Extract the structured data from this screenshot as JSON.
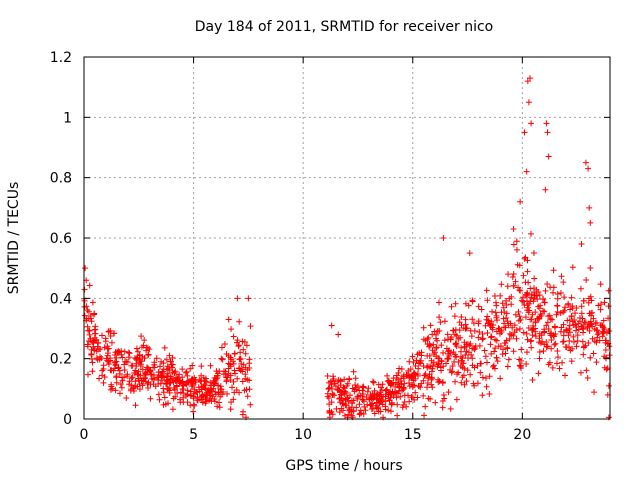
{
  "chart_data": {
    "type": "scatter",
    "title": "Day 184 of 2011, SRMTID for receiver nico",
    "xlabel": "GPS time / hours",
    "ylabel": "SRMTID / TECUs",
    "xlim": [
      0,
      24
    ],
    "ylim": [
      0,
      1.2
    ],
    "x_ticks": [
      0,
      5,
      10,
      15,
      20
    ],
    "x_tick_labels": [
      "0",
      "5",
      "10",
      "15",
      "20"
    ],
    "y_ticks": [
      0,
      0.2,
      0.4,
      0.6,
      0.8,
      1.0,
      1.2
    ],
    "y_tick_labels": [
      "0",
      "0.2",
      "0.4",
      "0.6",
      "0.8",
      "1",
      "1.2"
    ],
    "grid": true,
    "marker": "+",
    "series_color": "#ff0000",
    "data_gap_hours": [
      7.6,
      11.1
    ],
    "trend": [
      {
        "x": 0.0,
        "y": 0.34,
        "spread": 0.12
      },
      {
        "x": 0.5,
        "y": 0.25,
        "spread": 0.08
      },
      {
        "x": 1.0,
        "y": 0.2,
        "spread": 0.07
      },
      {
        "x": 2.0,
        "y": 0.17,
        "spread": 0.06
      },
      {
        "x": 3.0,
        "y": 0.16,
        "spread": 0.06
      },
      {
        "x": 4.0,
        "y": 0.13,
        "spread": 0.05
      },
      {
        "x": 5.0,
        "y": 0.1,
        "spread": 0.04
      },
      {
        "x": 6.0,
        "y": 0.11,
        "spread": 0.05
      },
      {
        "x": 7.0,
        "y": 0.17,
        "spread": 0.1
      },
      {
        "x": 7.6,
        "y": 0.16,
        "spread": 0.1
      },
      {
        "x": 11.1,
        "y": 0.08,
        "spread": 0.05
      },
      {
        "x": 12.0,
        "y": 0.07,
        "spread": 0.05
      },
      {
        "x": 13.0,
        "y": 0.05,
        "spread": 0.04
      },
      {
        "x": 14.0,
        "y": 0.09,
        "spread": 0.05
      },
      {
        "x": 15.0,
        "y": 0.13,
        "spread": 0.06
      },
      {
        "x": 16.0,
        "y": 0.2,
        "spread": 0.1
      },
      {
        "x": 17.0,
        "y": 0.24,
        "spread": 0.11
      },
      {
        "x": 18.0,
        "y": 0.25,
        "spread": 0.1
      },
      {
        "x": 19.0,
        "y": 0.3,
        "spread": 0.11
      },
      {
        "x": 20.0,
        "y": 0.38,
        "spread": 0.14
      },
      {
        "x": 21.0,
        "y": 0.33,
        "spread": 0.13
      },
      {
        "x": 22.0,
        "y": 0.3,
        "spread": 0.11
      },
      {
        "x": 23.0,
        "y": 0.32,
        "spread": 0.1
      },
      {
        "x": 24.0,
        "y": 0.25,
        "spread": 0.09
      }
    ],
    "outliers": [
      {
        "x": 0.05,
        "y": 0.5
      },
      {
        "x": 0.1,
        "y": 0.46
      },
      {
        "x": 6.6,
        "y": 0.33
      },
      {
        "x": 7.0,
        "y": 0.4
      },
      {
        "x": 7.5,
        "y": 0.4
      },
      {
        "x": 11.3,
        "y": 0.31
      },
      {
        "x": 11.6,
        "y": 0.28
      },
      {
        "x": 16.4,
        "y": 0.6
      },
      {
        "x": 17.6,
        "y": 0.55
      },
      {
        "x": 19.6,
        "y": 0.63
      },
      {
        "x": 19.9,
        "y": 0.72
      },
      {
        "x": 20.1,
        "y": 0.95
      },
      {
        "x": 20.2,
        "y": 0.82
      },
      {
        "x": 20.25,
        "y": 1.12
      },
      {
        "x": 20.3,
        "y": 1.05
      },
      {
        "x": 20.35,
        "y": 1.13
      },
      {
        "x": 20.4,
        "y": 0.98
      },
      {
        "x": 21.1,
        "y": 0.98
      },
      {
        "x": 21.15,
        "y": 0.95
      },
      {
        "x": 21.2,
        "y": 0.87
      },
      {
        "x": 21.05,
        "y": 0.76
      },
      {
        "x": 22.9,
        "y": 0.85
      },
      {
        "x": 23.0,
        "y": 0.83
      },
      {
        "x": 23.05,
        "y": 0.7
      },
      {
        "x": 23.1,
        "y": 0.65
      },
      {
        "x": 22.7,
        "y": 0.58
      },
      {
        "x": 23.9,
        "y": 0.08
      },
      {
        "x": 23.95,
        "y": 0.11
      }
    ],
    "points_per_hour": 70,
    "random_seed": 184
  }
}
